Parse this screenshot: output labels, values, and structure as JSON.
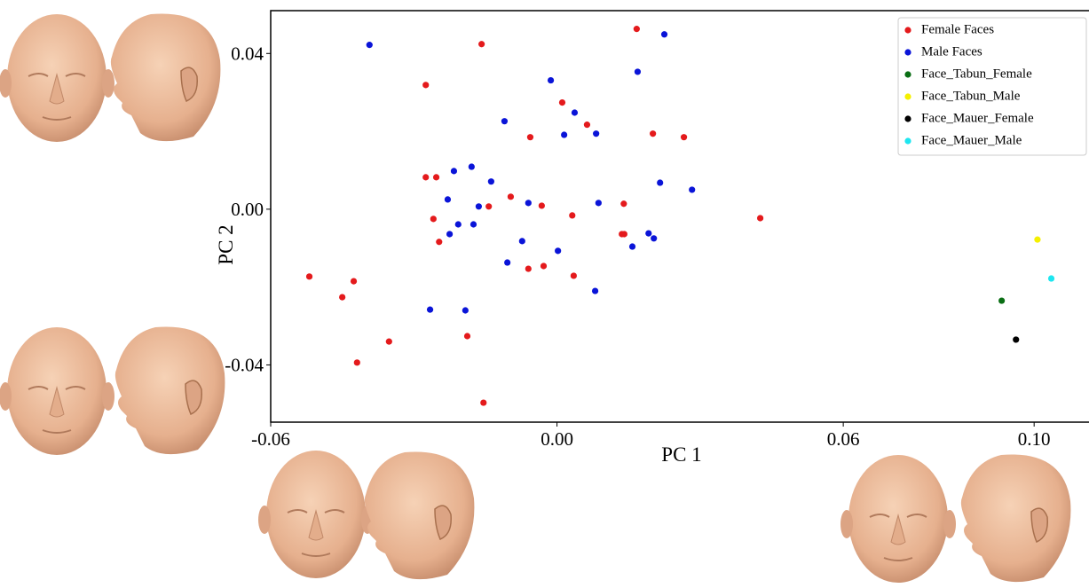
{
  "chart_data": {
    "type": "scatter",
    "x_label": "PC 1",
    "y_label": "PC 2",
    "xlim": [
      -0.06,
      0.1115
    ],
    "ylim": [
      -0.0547,
      0.051
    ],
    "xticks": [
      {
        "value": -0.06,
        "label": "-0.06"
      },
      {
        "value": 0,
        "label": "0.00"
      },
      {
        "value": 0.06,
        "label": "0.06"
      },
      {
        "value": 0.1,
        "label": "0.10"
      }
    ],
    "yticks": [
      {
        "value": 0.04,
        "label": "0.04"
      },
      {
        "value": 0,
        "label": "0.00"
      },
      {
        "value": -0.04,
        "label": "-0.04"
      }
    ],
    "legend_position": "upper right",
    "series": [
      {
        "name": "Female Faces",
        "color": "#e41a1c",
        "x": [
          0.0167,
          -0.0158,
          -0.0275,
          0.0011,
          0.0063,
          -0.0056,
          0.0201,
          0.0266,
          -0.0275,
          -0.0253,
          -0.0097,
          -0.0143,
          -0.0032,
          0.0032,
          -0.0259,
          0.014,
          0.0426,
          -0.0247,
          0.0136,
          0.0141,
          -0.006,
          -0.0028,
          0.0035,
          -0.0519,
          -0.0426,
          -0.045,
          -0.0352,
          -0.0188,
          -0.0419,
          -0.0154
        ],
        "y": [
          0.0463,
          0.0424,
          0.0319,
          0.0274,
          0.0217,
          0.0185,
          0.0194,
          0.0185,
          0.0082,
          0.0082,
          0.0032,
          0.0007,
          0.0009,
          -0.0016,
          -0.0025,
          0.0014,
          -0.0023,
          -0.0084,
          -0.0064,
          -0.0064,
          -0.0153,
          -0.0146,
          -0.0171,
          -0.0173,
          -0.0185,
          -0.0226,
          -0.034,
          -0.0326,
          -0.0394,
          -0.0497
        ]
      },
      {
        "name": "Male Faces",
        "color": "#0a14d8",
        "x": [
          -0.0393,
          0.0225,
          0.0169,
          -0.0013,
          0.0037,
          -0.011,
          0.0015,
          0.0082,
          -0.0179,
          -0.0216,
          -0.0138,
          0.0216,
          0.0283,
          -0.0229,
          -0.0164,
          -0.006,
          0.0087,
          -0.0207,
          -0.0175,
          -0.0225,
          -0.0073,
          0.0192,
          0.0203,
          0.0158,
          0.0002,
          -0.0104,
          0.008,
          -0.0266,
          -0.0192
        ],
        "y": [
          0.0422,
          0.0449,
          0.0353,
          0.0331,
          0.0248,
          0.0226,
          0.0191,
          0.0194,
          0.0109,
          0.0098,
          0.0071,
          0.0068,
          0.005,
          0.0025,
          0.0007,
          0.0016,
          0.0016,
          -0.0039,
          -0.0039,
          -0.0064,
          -0.0082,
          -0.0062,
          -0.0075,
          -0.0096,
          -0.0107,
          -0.0137,
          -0.021,
          -0.0258,
          -0.026
        ]
      },
      {
        "name": "Face_Tabun_Female",
        "color": "#0a6e14",
        "x": [
          0.0932
        ],
        "y": [
          -0.0235
        ]
      },
      {
        "name": "Face_Tabun_Male",
        "color": "#f5f000",
        "x": [
          0.1007
        ],
        "y": [
          -0.0078
        ]
      },
      {
        "name": "Face_Mauer_Female",
        "color": "#000000",
        "x": [
          0.0962
        ],
        "y": [
          -0.0335
        ]
      },
      {
        "name": "Face_Mauer_Male",
        "color": "#1ee6f0",
        "x": [
          0.1036
        ],
        "y": [
          -0.0178
        ]
      }
    ]
  }
}
